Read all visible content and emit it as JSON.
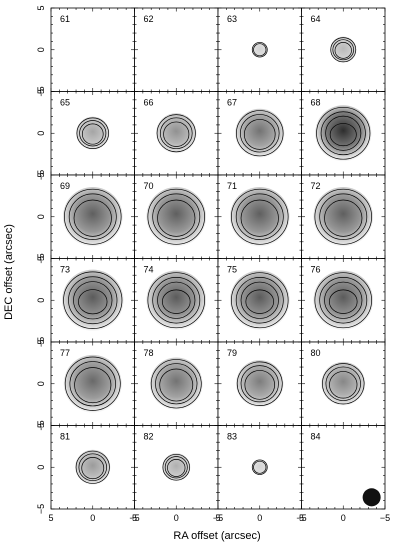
{
  "chart_data": {
    "type": "heatmap",
    "title": "",
    "xlabel": "RA offset (arcsec)",
    "ylabel": "DEC offset (arcsec)",
    "xlim": [
      5,
      -5
    ],
    "ylim": [
      -5,
      5
    ],
    "x_ticks": [
      "5",
      "0",
      "−5"
    ],
    "y_ticks": [
      "−5",
      "0",
      "5"
    ],
    "grid": false,
    "columns": 4,
    "rows": 6,
    "colormap": "grayscale",
    "panels": [
      {
        "channel": "61",
        "peak": 0.0,
        "size_arcsec": 0.0,
        "contour_levels": 0
      },
      {
        "channel": "62",
        "peak": 0.0,
        "size_arcsec": 0.0,
        "contour_levels": 0
      },
      {
        "channel": "63",
        "peak": 0.12,
        "size_arcsec": 0.9,
        "contour_levels": 2
      },
      {
        "channel": "64",
        "peak": 0.25,
        "size_arcsec": 1.5,
        "contour_levels": 3
      },
      {
        "channel": "65",
        "peak": 0.35,
        "size_arcsec": 1.9,
        "contour_levels": 3
      },
      {
        "channel": "66",
        "peak": 0.45,
        "size_arcsec": 2.3,
        "contour_levels": 3
      },
      {
        "channel": "67",
        "peak": 0.6,
        "size_arcsec": 2.8,
        "contour_levels": 3
      },
      {
        "channel": "68",
        "peak": 0.95,
        "size_arcsec": 3.2,
        "contour_levels": 4
      },
      {
        "channel": "69",
        "peak": 0.7,
        "size_arcsec": 3.4,
        "contour_levels": 3
      },
      {
        "channel": "70",
        "peak": 0.7,
        "size_arcsec": 3.4,
        "contour_levels": 3
      },
      {
        "channel": "71",
        "peak": 0.7,
        "size_arcsec": 3.4,
        "contour_levels": 3
      },
      {
        "channel": "72",
        "peak": 0.7,
        "size_arcsec": 3.4,
        "contour_levels": 3
      },
      {
        "channel": "73",
        "peak": 0.72,
        "size_arcsec": 3.5,
        "contour_levels": 4
      },
      {
        "channel": "74",
        "peak": 0.72,
        "size_arcsec": 3.4,
        "contour_levels": 4
      },
      {
        "channel": "75",
        "peak": 0.72,
        "size_arcsec": 3.4,
        "contour_levels": 4
      },
      {
        "channel": "76",
        "peak": 0.72,
        "size_arcsec": 3.4,
        "contour_levels": 4
      },
      {
        "channel": "77",
        "peak": 0.65,
        "size_arcsec": 3.3,
        "contour_levels": 3
      },
      {
        "channel": "78",
        "peak": 0.6,
        "size_arcsec": 3.0,
        "contour_levels": 3
      },
      {
        "channel": "79",
        "peak": 0.55,
        "size_arcsec": 2.7,
        "contour_levels": 3
      },
      {
        "channel": "80",
        "peak": 0.5,
        "size_arcsec": 2.5,
        "contour_levels": 3
      },
      {
        "channel": "81",
        "peak": 0.4,
        "size_arcsec": 2.0,
        "contour_levels": 3
      },
      {
        "channel": "82",
        "peak": 0.3,
        "size_arcsec": 1.6,
        "contour_levels": 3
      },
      {
        "channel": "83",
        "peak": 0.12,
        "size_arcsec": 0.9,
        "contour_levels": 2
      },
      {
        "channel": "84",
        "peak": 0.0,
        "size_arcsec": 0.0,
        "contour_levels": 0
      }
    ],
    "beam": {
      "panel": "84",
      "major_arcsec": 1.2,
      "minor_arcsec": 1.2
    }
  }
}
